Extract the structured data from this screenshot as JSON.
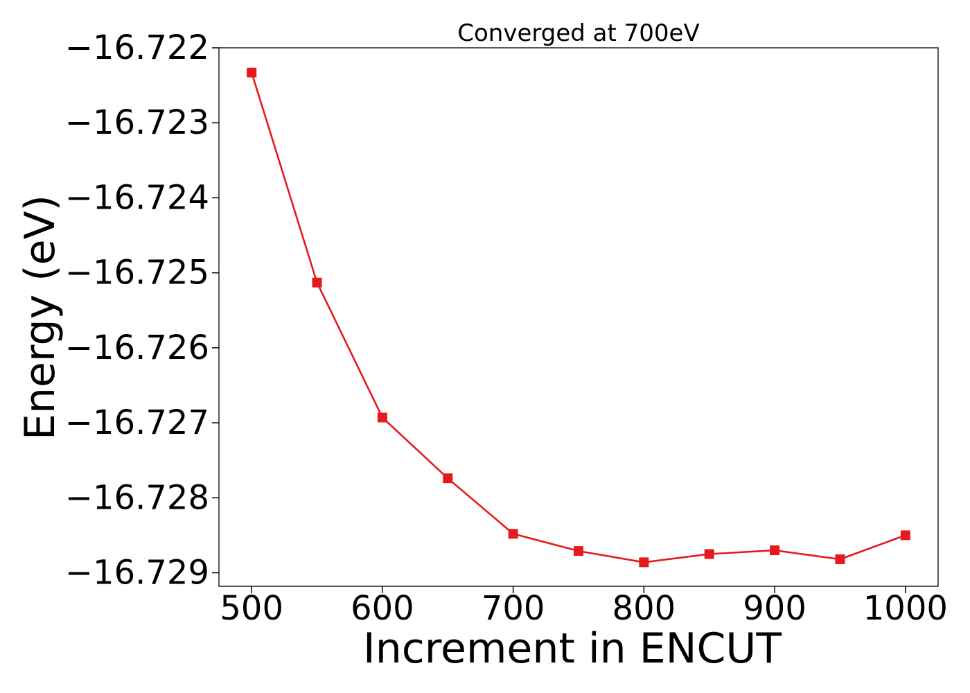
{
  "chart_data": {
    "type": "line",
    "title": "Converged at 700eV",
    "xlabel": "Increment in ENCUT",
    "ylabel": "Energy (eV)",
    "xlim": [
      475,
      1025
    ],
    "ylim": [
      -16.72918,
      -16.722
    ],
    "xticks": [
      500,
      600,
      700,
      800,
      900,
      1000
    ],
    "yticks": [
      -16.722,
      -16.723,
      -16.724,
      -16.725,
      -16.726,
      -16.727,
      -16.728,
      -16.729
    ],
    "ytick_labels": [
      "−16.722",
      "−16.723",
      "−16.724",
      "−16.725",
      "−16.726",
      "−16.727",
      "−16.728",
      "−16.729"
    ],
    "grid": false,
    "series": [
      {
        "color": "#e41a1c",
        "marker": "square",
        "x": [
          500,
          550,
          600,
          650,
          700,
          750,
          800,
          850,
          900,
          950,
          1000
        ],
        "y": [
          -16.72233,
          -16.72513,
          -16.72693,
          -16.72774,
          -16.72848,
          -16.72871,
          -16.72886,
          -16.72875,
          -16.7287,
          -16.72882,
          -16.7285
        ]
      }
    ]
  }
}
